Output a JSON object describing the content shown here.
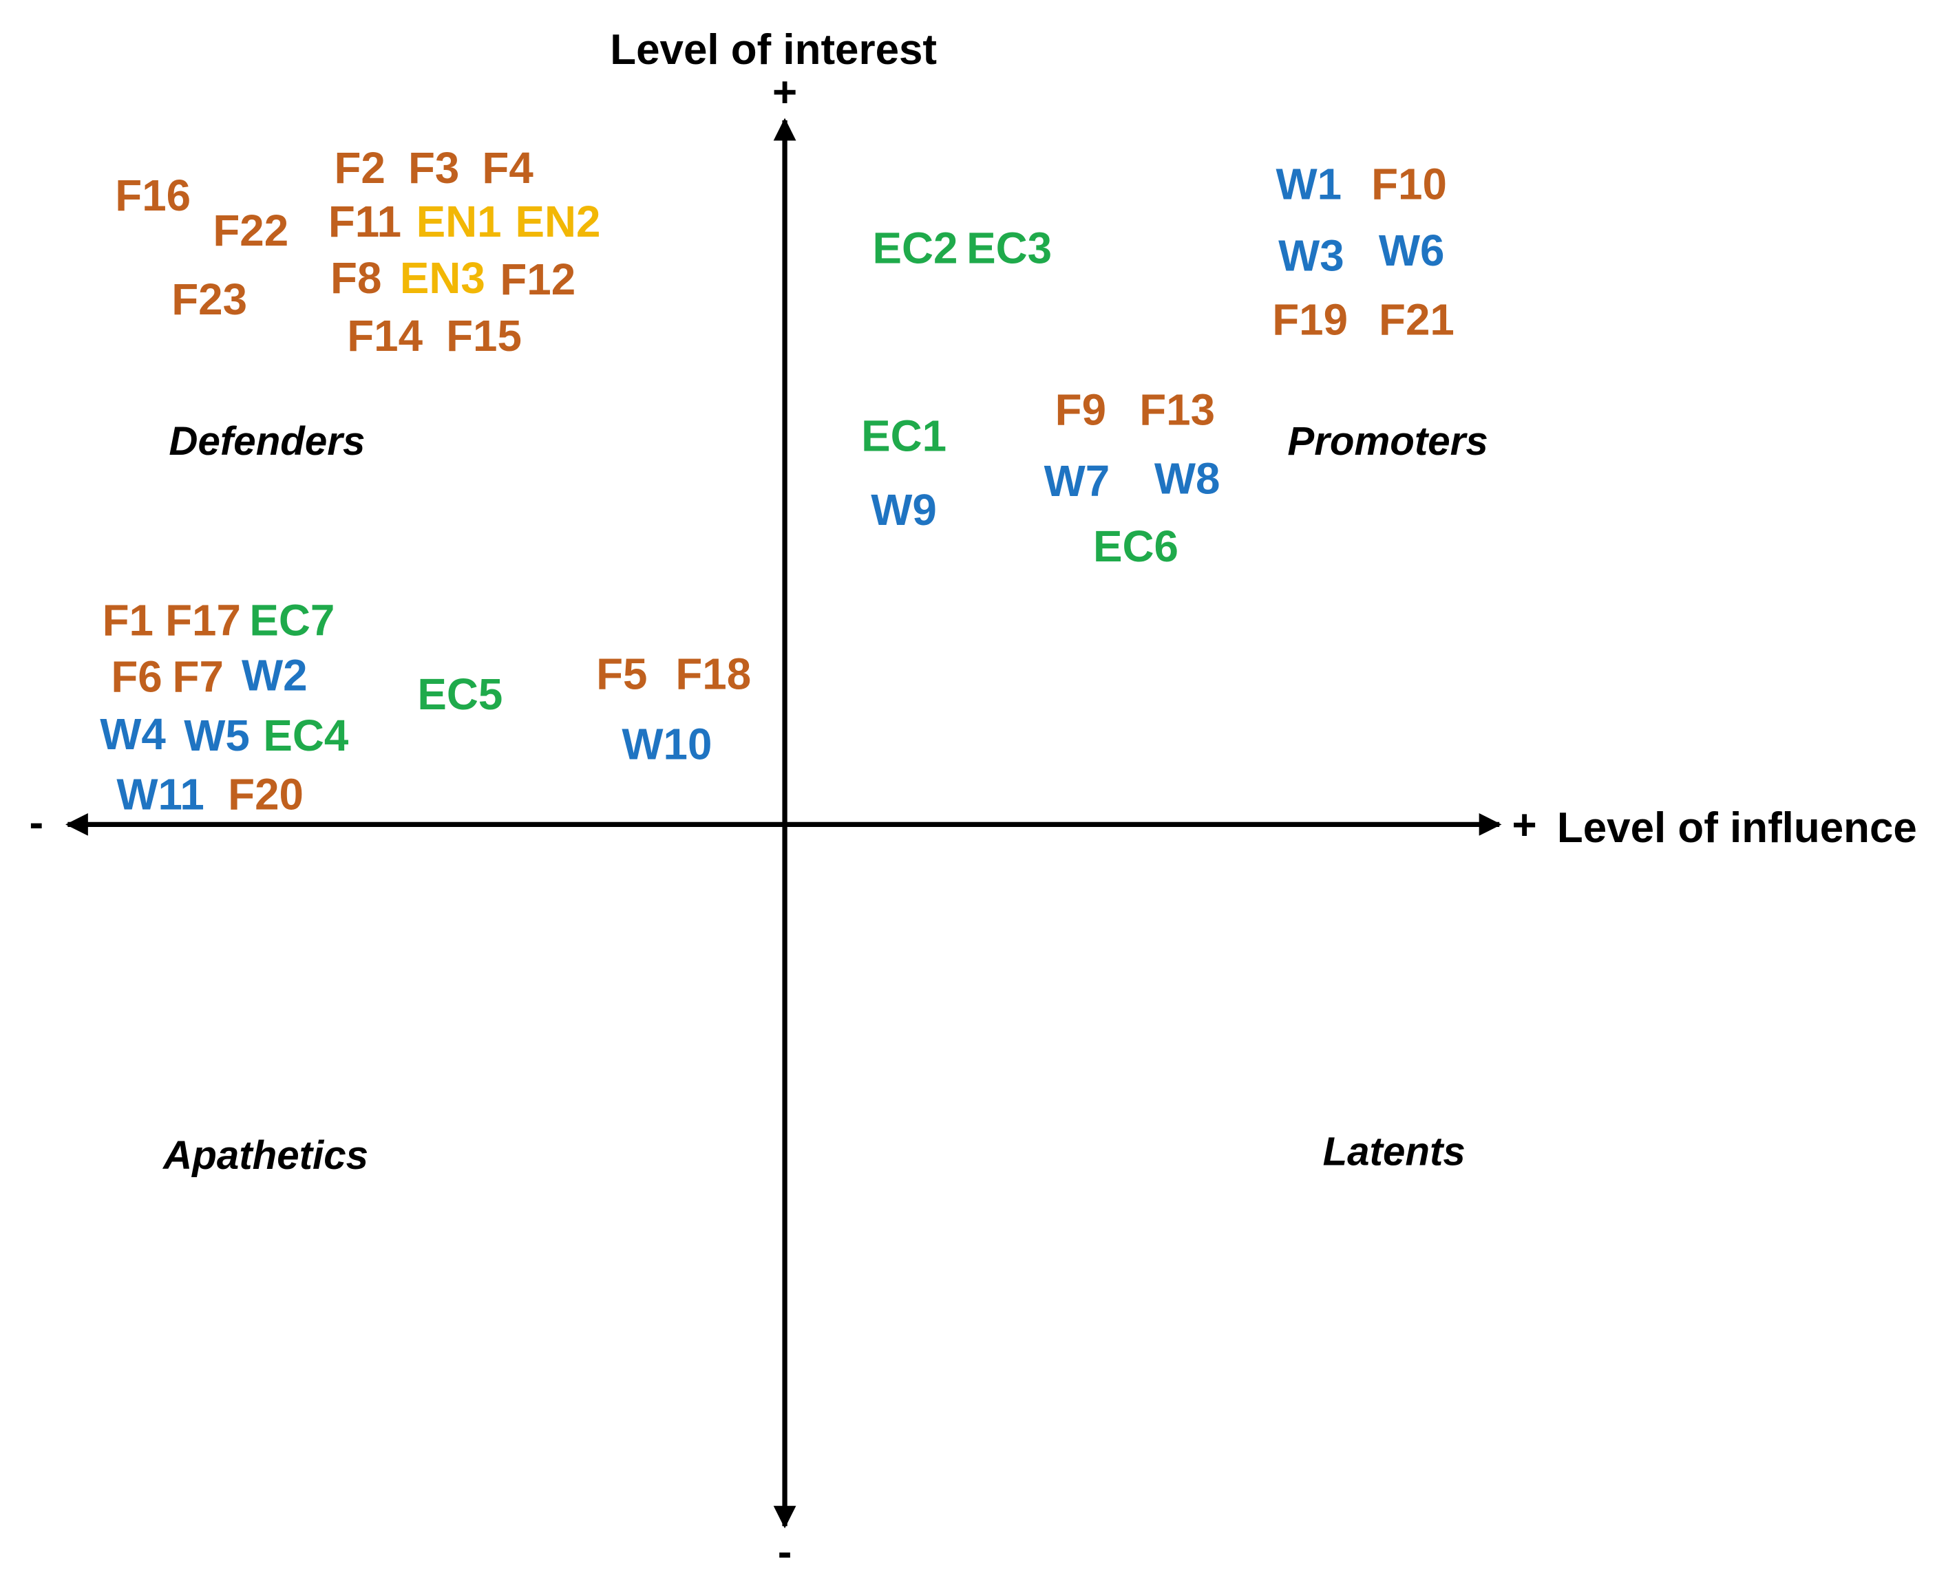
{
  "axes": {
    "y_title": "Level of interest",
    "x_title": "Level of influence",
    "plus": "+",
    "minus": "-"
  },
  "quadrants": {
    "defenders": "Defenders",
    "promoters": "Promoters",
    "apathetics": "Apathetics",
    "latents": "Latents"
  },
  "colors": {
    "F": "#C0601E",
    "W": "#1F74C2",
    "EC": "#1FAA4B",
    "EN": "#F2B705",
    "axis": "#000000"
  },
  "stakeholders": [
    {
      "id": "F16",
      "group": "F"
    },
    {
      "id": "F2",
      "group": "F"
    },
    {
      "id": "F3",
      "group": "F"
    },
    {
      "id": "F4",
      "group": "F"
    },
    {
      "id": "F22",
      "group": "F"
    },
    {
      "id": "F11",
      "group": "F"
    },
    {
      "id": "EN1",
      "group": "EN"
    },
    {
      "id": "EN2",
      "group": "EN"
    },
    {
      "id": "F23",
      "group": "F"
    },
    {
      "id": "F8",
      "group": "F"
    },
    {
      "id": "EN3",
      "group": "EN"
    },
    {
      "id": "F12",
      "group": "F"
    },
    {
      "id": "F14",
      "group": "F"
    },
    {
      "id": "F15",
      "group": "F"
    },
    {
      "id": "EC2",
      "group": "EC"
    },
    {
      "id": "EC3",
      "group": "EC"
    },
    {
      "id": "W1",
      "group": "W"
    },
    {
      "id": "F10",
      "group": "F"
    },
    {
      "id": "W3",
      "group": "W"
    },
    {
      "id": "W6",
      "group": "W"
    },
    {
      "id": "F19",
      "group": "F"
    },
    {
      "id": "F21",
      "group": "F"
    },
    {
      "id": "F9",
      "group": "F"
    },
    {
      "id": "F13",
      "group": "F"
    },
    {
      "id": "EC1",
      "group": "EC"
    },
    {
      "id": "W7",
      "group": "W"
    },
    {
      "id": "W8",
      "group": "W"
    },
    {
      "id": "W9",
      "group": "W"
    },
    {
      "id": "EC6",
      "group": "EC"
    },
    {
      "id": "F1",
      "group": "F"
    },
    {
      "id": "F17",
      "group": "F"
    },
    {
      "id": "EC7",
      "group": "EC"
    },
    {
      "id": "F6",
      "group": "F"
    },
    {
      "id": "F7",
      "group": "F"
    },
    {
      "id": "W2",
      "group": "W"
    },
    {
      "id": "EC5",
      "group": "EC"
    },
    {
      "id": "F5",
      "group": "F"
    },
    {
      "id": "F18",
      "group": "F"
    },
    {
      "id": "W4",
      "group": "W"
    },
    {
      "id": "W5",
      "group": "W"
    },
    {
      "id": "EC4",
      "group": "EC"
    },
    {
      "id": "W10",
      "group": "W"
    },
    {
      "id": "W11",
      "group": "W"
    },
    {
      "id": "F20",
      "group": "F"
    }
  ]
}
